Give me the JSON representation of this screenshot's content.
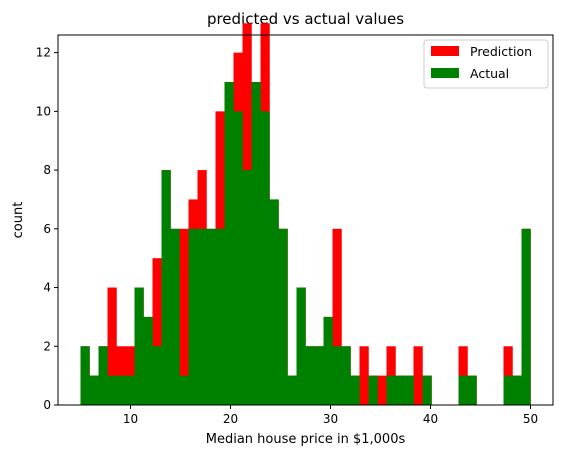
{
  "chart_data": {
    "type": "bar",
    "title": "predicted vs actual values",
    "xlabel": "Median house price in $1,000s",
    "ylabel": "count",
    "xlim": [
      2.75,
      52.25
    ],
    "ylim": [
      0,
      12.6
    ],
    "xticks": [
      10,
      20,
      30,
      40,
      50
    ],
    "yticks": [
      0,
      2,
      4,
      6,
      8,
      10,
      12
    ],
    "bin_width": 0.9,
    "bin_starts": [
      5.0,
      5.9,
      6.8,
      7.7,
      8.6,
      9.5,
      10.4,
      11.3,
      12.2,
      13.1,
      14.0,
      14.9,
      15.8,
      16.7,
      17.6,
      18.5,
      19.4,
      20.3,
      21.2,
      22.1,
      23.0,
      23.9,
      24.8,
      25.7,
      26.6,
      27.5,
      28.4,
      29.3,
      30.2,
      31.1,
      32.0,
      32.9,
      33.8,
      34.7,
      35.6,
      36.5,
      37.4,
      38.3,
      39.2,
      40.1,
      41.0,
      41.9,
      42.8,
      43.7,
      44.6,
      45.5,
      46.4,
      47.3,
      48.2,
      49.1
    ],
    "legend_position": "upper right",
    "grid": false,
    "series": [
      {
        "name": "Prediction",
        "color": "#ff0000",
        "values": [
          2,
          1,
          2,
          4,
          2,
          2,
          4,
          3,
          5,
          8,
          6,
          6,
          7,
          8,
          6,
          10,
          11,
          12,
          13,
          11,
          13,
          7,
          6,
          1,
          4,
          2,
          2,
          3,
          6,
          2,
          1,
          2,
          1,
          1,
          2,
          1,
          1,
          2,
          1,
          0,
          0,
          0,
          2,
          1,
          0,
          0,
          0,
          2,
          1,
          6
        ]
      },
      {
        "name": "Actual",
        "color": "#008000",
        "values": [
          2,
          1,
          2,
          1,
          1,
          1,
          4,
          3,
          2,
          8,
          6,
          1,
          6,
          6,
          6,
          6,
          11,
          10,
          8,
          11,
          10,
          7,
          6,
          1,
          4,
          2,
          2,
          3,
          2,
          2,
          1,
          0,
          1,
          0,
          1,
          1,
          1,
          0,
          1,
          0,
          0,
          0,
          1,
          1,
          0,
          0,
          0,
          1,
          1,
          6
        ]
      }
    ]
  },
  "legend": {
    "prediction_label": "Prediction",
    "actual_label": "Actual"
  }
}
